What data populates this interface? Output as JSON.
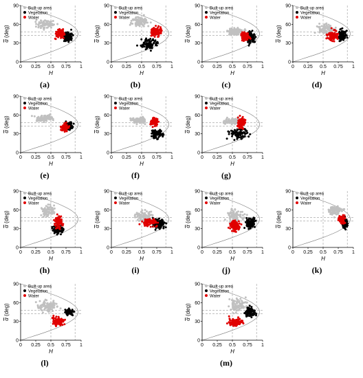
{
  "colors": {
    "built_up": "#c0c0c0",
    "vegetation": "#000000",
    "water": "#e00000"
  },
  "common": {
    "xlabel": "H",
    "ylabel_symbol": "α",
    "ylabel_unit": " (deg)",
    "legend": [
      "Built-up area",
      "Vegetation",
      "Water"
    ]
  },
  "panels": [
    {
      "label": "(a)",
      "chart_data": {
        "type": "scatter",
        "xlim": [
          0,
          1
        ],
        "ylim": [
          0,
          90
        ],
        "xticks": [
          "0",
          "0.25",
          "0.5",
          "0.75",
          "1"
        ],
        "yticks": [
          "0",
          "30",
          "60",
          "90"
        ],
        "series": [
          {
            "name": "Built-up area",
            "center": [
              0.42,
              60
            ],
            "spread": [
              0.14,
              6
            ]
          },
          {
            "name": "Vegetation",
            "center": [
              0.78,
              40
            ],
            "spread": [
              0.07,
              7
            ]
          },
          {
            "name": "Water",
            "center": [
              0.65,
              45
            ],
            "spread": [
              0.06,
              7
            ]
          }
        ]
      }
    },
    {
      "label": "(b)",
      "chart_data": {
        "type": "scatter",
        "xlim": [
          0,
          1
        ],
        "ylim": [
          0,
          90
        ],
        "xticks": [
          "0",
          "0.25",
          "0.5",
          "0.75",
          "1"
        ],
        "yticks": [
          "0",
          "30",
          "60",
          "90"
        ],
        "series": [
          {
            "name": "Built-up area",
            "center": [
              0.48,
              65
            ],
            "spread": [
              0.14,
              8
            ]
          },
          {
            "name": "Vegetation",
            "center": [
              0.62,
              28
            ],
            "spread": [
              0.14,
              8
            ]
          },
          {
            "name": "Water",
            "center": [
              0.74,
              48
            ],
            "spread": [
              0.08,
              8
            ]
          }
        ]
      }
    },
    {
      "label": "(c)",
      "chart_data": {
        "type": "scatter",
        "xlim": [
          0,
          1
        ],
        "ylim": [
          0,
          90
        ],
        "xticks": [
          "0",
          "0.25",
          "0.5",
          "0.75",
          "1"
        ],
        "yticks": [
          "0",
          "30",
          "60",
          "90"
        ],
        "series": [
          {
            "name": "Built-up area",
            "center": [
              0.55,
              48
            ],
            "spread": [
              0.14,
              6
            ]
          },
          {
            "name": "Vegetation",
            "center": [
              0.8,
              38
            ],
            "spread": [
              0.07,
              8
            ]
          },
          {
            "name": "Water",
            "center": [
              0.72,
              40
            ],
            "spread": [
              0.06,
              6
            ]
          }
        ]
      }
    },
    {
      "label": "(d)",
      "chart_data": {
        "type": "scatter",
        "xlim": [
          0,
          1
        ],
        "ylim": [
          0,
          90
        ],
        "xticks": [
          "0",
          "0.25",
          "0.5",
          "0.75",
          "1"
        ],
        "yticks": [
          "0",
          "30",
          "60",
          "90"
        ],
        "series": [
          {
            "name": "Built-up area",
            "center": [
              0.55,
              52
            ],
            "spread": [
              0.14,
              7
            ]
          },
          {
            "name": "Vegetation",
            "center": [
              0.82,
              42
            ],
            "spread": [
              0.07,
              8
            ]
          },
          {
            "name": "Water",
            "center": [
              0.66,
              42
            ],
            "spread": [
              0.08,
              8
            ]
          }
        ]
      }
    },
    {
      "label": "(e)",
      "chart_data": {
        "type": "scatter",
        "xlim": [
          0,
          1
        ],
        "ylim": [
          0,
          90
        ],
        "xticks": [
          "0",
          "0.25",
          "0.5",
          "0.75",
          "1"
        ],
        "yticks": [
          "0",
          "30",
          "60",
          "90"
        ],
        "series": [
          {
            "name": "Built-up area",
            "center": [
              0.4,
              55
            ],
            "spread": [
              0.16,
              5
            ]
          },
          {
            "name": "Vegetation",
            "center": [
              0.8,
              42
            ],
            "spread": [
              0.06,
              6
            ]
          },
          {
            "name": "Water",
            "center": [
              0.72,
              40
            ],
            "spread": [
              0.06,
              6
            ]
          }
        ]
      }
    },
    {
      "label": "(f)",
      "chart_data": {
        "type": "scatter",
        "xlim": [
          0,
          1
        ],
        "ylim": [
          0,
          90
        ],
        "xticks": [
          "0",
          "0.25",
          "0.5",
          "0.75",
          "1"
        ],
        "yticks": [
          "0",
          "30",
          "60",
          "90"
        ],
        "series": [
          {
            "name": "Built-up area",
            "center": [
              0.45,
              52
            ],
            "spread": [
              0.12,
              5
            ]
          },
          {
            "name": "Vegetation",
            "center": [
              0.75,
              30
            ],
            "spread": [
              0.1,
              8
            ]
          },
          {
            "name": "Water",
            "center": [
              0.7,
              48
            ],
            "spread": [
              0.06,
              6
            ]
          }
        ]
      }
    },
    {
      "label": "(g)",
      "chart_data": {
        "type": "scatter",
        "xlim": [
          0,
          1
        ],
        "ylim": [
          0,
          90
        ],
        "xticks": [
          "0",
          "0.25",
          "0.5",
          "0.75",
          "1"
        ],
        "yticks": [
          "0",
          "30",
          "60",
          "90"
        ],
        "series": [
          {
            "name": "Built-up area",
            "center": [
              0.5,
              50
            ],
            "spread": [
              0.14,
              5
            ]
          },
          {
            "name": "Vegetation",
            "center": [
              0.62,
              30
            ],
            "spread": [
              0.15,
              8
            ]
          },
          {
            "name": "Water",
            "center": [
              0.65,
              48
            ],
            "spread": [
              0.06,
              8
            ]
          }
        ]
      }
    },
    {
      "label": "(h)",
      "chart_data": {
        "type": "scatter",
        "xlim": [
          0,
          1
        ],
        "ylim": [
          0,
          90
        ],
        "xticks": [
          "0",
          "0.25",
          "0.5",
          "0.75",
          "1"
        ],
        "yticks": [
          "0",
          "30",
          "60",
          "90"
        ],
        "series": [
          {
            "name": "Built-up area",
            "center": [
              0.45,
              58
            ],
            "spread": [
              0.12,
              8
            ]
          },
          {
            "name": "Vegetation",
            "center": [
              0.62,
              30
            ],
            "spread": [
              0.08,
              8
            ]
          },
          {
            "name": "Water",
            "center": [
              0.62,
              40
            ],
            "spread": [
              0.06,
              10
            ]
          }
        ]
      }
    },
    {
      "label": "(i)",
      "chart_data": {
        "type": "scatter",
        "xlim": [
          0,
          1
        ],
        "ylim": [
          0,
          90
        ],
        "xticks": [
          "0",
          "0.25",
          "0.5",
          "0.75",
          "1"
        ],
        "yticks": [
          "0",
          "30",
          "60",
          "90"
        ],
        "series": [
          {
            "name": "Built-up area",
            "center": [
              0.55,
              50
            ],
            "spread": [
              0.16,
              8
            ]
          },
          {
            "name": "Vegetation",
            "center": [
              0.78,
              38
            ],
            "spread": [
              0.1,
              8
            ]
          },
          {
            "name": "Water",
            "center": [
              0.62,
              40
            ],
            "spread": [
              0.12,
              6
            ]
          }
        ]
      }
    },
    {
      "label": "(j)",
      "chart_data": {
        "type": "scatter",
        "xlim": [
          0,
          1
        ],
        "ylim": [
          0,
          90
        ],
        "xticks": [
          "0",
          "0.25",
          "0.5",
          "0.75",
          "1"
        ],
        "yticks": [
          "0",
          "30",
          "60",
          "90"
        ],
        "series": [
          {
            "name": "Built-up area",
            "center": [
              0.55,
              50
            ],
            "spread": [
              0.15,
              10
            ]
          },
          {
            "name": "Vegetation",
            "center": [
              0.8,
              38
            ],
            "spread": [
              0.08,
              8
            ]
          },
          {
            "name": "Water",
            "center": [
              0.55,
              35
            ],
            "spread": [
              0.08,
              8
            ]
          }
        ]
      }
    },
    {
      "label": "(k)",
      "chart_data": {
        "type": "scatter",
        "xlim": [
          0,
          1
        ],
        "ylim": [
          0,
          90
        ],
        "xticks": [
          "0",
          "0.25",
          "0.5",
          "0.75",
          "1"
        ],
        "yticks": [
          "0",
          "30",
          "60",
          "90"
        ],
        "series": [
          {
            "name": "Built-up area",
            "center": [
              0.7,
              58
            ],
            "spread": [
              0.12,
              7
            ]
          },
          {
            "name": "Vegetation",
            "center": [
              0.86,
              38
            ],
            "spread": [
              0.05,
              8
            ]
          },
          {
            "name": "Water",
            "center": [
              0.8,
              45
            ],
            "spread": [
              0.05,
              6
            ]
          }
        ]
      }
    },
    {
      "label": "(l)",
      "chart_data": {
        "type": "scatter",
        "xlim": [
          0,
          1
        ],
        "ylim": [
          0,
          90
        ],
        "xticks": [
          "0",
          "0.25",
          "0.5",
          "0.75",
          "1"
        ],
        "yticks": [
          "0",
          "30",
          "60",
          "90"
        ],
        "series": [
          {
            "name": "Built-up area",
            "center": [
              0.45,
              55
            ],
            "spread": [
              0.16,
              8
            ]
          },
          {
            "name": "Vegetation",
            "center": [
              0.8,
              45
            ],
            "spread": [
              0.06,
              5
            ]
          },
          {
            "name": "Water",
            "center": [
              0.62,
              30
            ],
            "spread": [
              0.1,
              7
            ]
          }
        ]
      }
    },
    {
      "label": "(m)",
      "chart_data": {
        "type": "scatter",
        "xlim": [
          0,
          1
        ],
        "ylim": [
          0,
          90
        ],
        "xticks": [
          "0",
          "0.25",
          "0.5",
          "0.75",
          "1"
        ],
        "yticks": [
          "0",
          "30",
          "60",
          "90"
        ],
        "series": [
          {
            "name": "Built-up area",
            "center": [
              0.6,
              55
            ],
            "spread": [
              0.15,
              10
            ]
          },
          {
            "name": "Vegetation",
            "center": [
              0.8,
              45
            ],
            "spread": [
              0.08,
              7
            ]
          },
          {
            "name": "Water",
            "center": [
              0.55,
              28
            ],
            "spread": [
              0.12,
              7
            ]
          }
        ]
      }
    }
  ]
}
